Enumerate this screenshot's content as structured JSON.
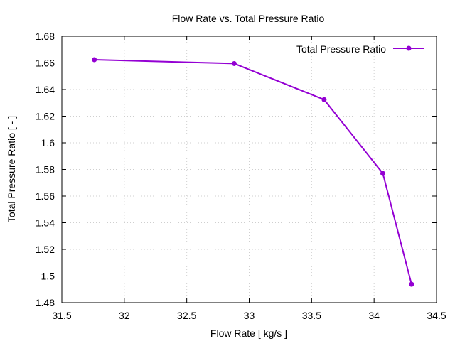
{
  "chart_data": {
    "type": "line",
    "title": "Flow Rate vs. Total Pressure Ratio",
    "xlabel": "Flow Rate [ kg/s ]",
    "ylabel": "Total Pressure Ratio [ - ]",
    "xlim": [
      31.5,
      34.5
    ],
    "ylim": [
      1.48,
      1.68
    ],
    "xticks": [
      "31.5",
      "32",
      "32.5",
      "33",
      "33.5",
      "34",
      "34.5"
    ],
    "yticks": [
      "1.48",
      "1.5",
      "1.52",
      "1.54",
      "1.56",
      "1.58",
      "1.6",
      "1.62",
      "1.64",
      "1.66",
      "1.68"
    ],
    "grid": true,
    "legend_position": "top-right",
    "series": [
      {
        "name": "Total Pressure Ratio",
        "color": "#9400d3",
        "marker": "circle",
        "x": [
          31.76,
          32.88,
          33.6,
          34.07,
          34.3
        ],
        "y": [
          1.6624,
          1.6595,
          1.6324,
          1.577,
          1.4938
        ]
      }
    ]
  }
}
